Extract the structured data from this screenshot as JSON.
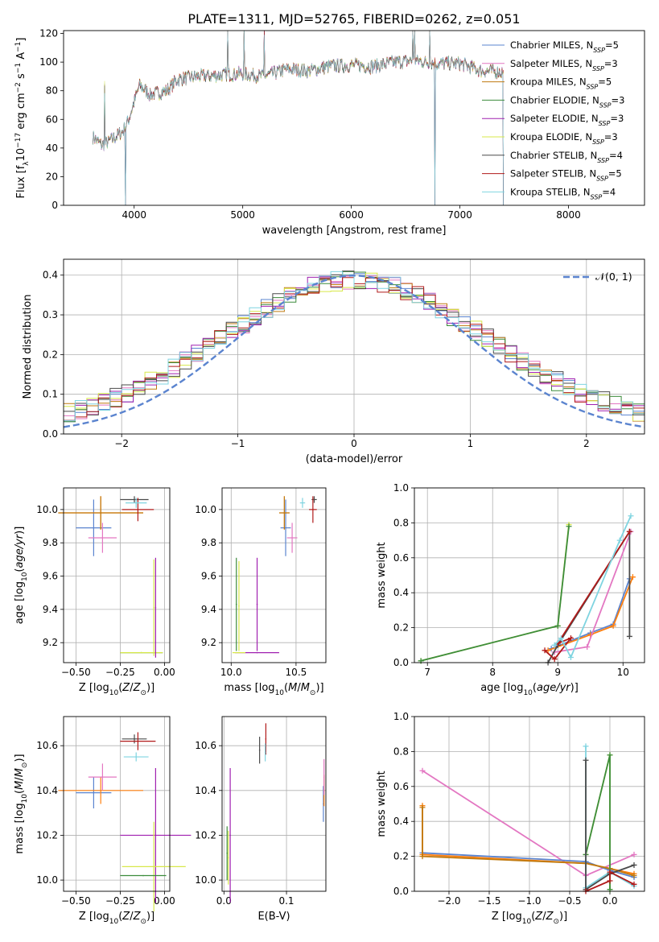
{
  "figure_title": "PLATE=1311, MJD=52765, FIBERID=0262, z=0.051",
  "series_colors": {
    "Chabrier MILES": "#5b84cf",
    "Salpeter MILES": "#ff7f0e",
    "Kroupa MILES": "#c07a10",
    "Chabrier ELODIE": "#3c8c3c",
    "Salpeter ELODIE": "#a020b0",
    "Kroupa ELODIE": "#d7e84a",
    "Chabrier STELIB": "#4a4a4a",
    "Salpeter STELIB": "#b11a1a",
    "Kroupa STELIB": "#7fd4e0",
    "Salpeter MILES (param panels)": "#e377c2"
  },
  "chart_data": [
    {
      "id": "spectrum",
      "type": "line",
      "xlabel": "wavelength [Angstrom, rest frame]",
      "ylabel": "Flux [f",
      "xlim": [
        3350,
        8700
      ],
      "ylim": [
        0,
        122
      ],
      "xticks": [
        4000,
        5000,
        6000,
        7000,
        8000
      ],
      "yticks": [
        0,
        20,
        40,
        60,
        80,
        100,
        120
      ],
      "grid": false,
      "legend": "top-right",
      "legend_entries": [
        {
          "label": "Chabrier MILES, N",
          "sub": "SSP",
          "suffix": "=5",
          "color": "#5b84cf"
        },
        {
          "label": "Salpeter MILES, N",
          "sub": "SSP",
          "suffix": "=3",
          "color": "#e377c2"
        },
        {
          "label": "Kroupa MILES, N",
          "sub": "SSP",
          "suffix": "=5",
          "color": "#c07a10"
        },
        {
          "label": "Chabrier ELODIE, N",
          "sub": "SSP",
          "suffix": "=3",
          "color": "#3c8c3c"
        },
        {
          "label": "Salpeter ELODIE, N",
          "sub": "SSP",
          "suffix": "=3",
          "color": "#a020b0"
        },
        {
          "label": "Kroupa ELODIE, N",
          "sub": "SSP",
          "suffix": "=3",
          "color": "#d7e84a"
        },
        {
          "label": "Chabrier STELIB, N",
          "sub": "SSP",
          "suffix": "=4",
          "color": "#4a4a4a"
        },
        {
          "label": "Salpeter STELIB, N",
          "sub": "SSP",
          "suffix": "=5",
          "color": "#b11a1a"
        },
        {
          "label": "Kroupa STELIB, N",
          "sub": "SSP",
          "suffix": "=4",
          "color": "#7fd4e0"
        }
      ],
      "flux_anchor_points": [
        [
          3620,
          48
        ],
        [
          3700,
          42
        ],
        [
          3800,
          46
        ],
        [
          3900,
          52
        ],
        [
          3950,
          60
        ],
        [
          4050,
          84
        ],
        [
          4150,
          77
        ],
        [
          4300,
          80
        ],
        [
          4400,
          88
        ],
        [
          4600,
          90
        ],
        [
          4800,
          91
        ],
        [
          5000,
          92
        ],
        [
          5200,
          90
        ],
        [
          5400,
          95
        ],
        [
          5600,
          94
        ],
        [
          5800,
          97
        ],
        [
          6000,
          98
        ],
        [
          6200,
          97
        ],
        [
          6400,
          100
        ],
        [
          6600,
          101
        ],
        [
          6800,
          99
        ],
        [
          7000,
          99
        ],
        [
          7200,
          94
        ],
        [
          7400,
          93
        ]
      ],
      "dropouts_x": [
        3920,
        6770,
        7400
      ],
      "emission_spikes_x": [
        3730,
        4860,
        5010,
        5200,
        6565,
        6585,
        6720
      ]
    },
    {
      "id": "residual-histogram",
      "type": "line",
      "xlabel": "(data-model)/error",
      "ylabel": "Normed distribution",
      "xlim": [
        -2.5,
        2.5
      ],
      "ylim": [
        0,
        0.44
      ],
      "xticks": [
        -2,
        -1,
        0,
        1,
        2
      ],
      "yticks": [
        0.0,
        0.1,
        0.2,
        0.3,
        0.4
      ],
      "grid": true,
      "legend": "top-right",
      "reference_label": "𝒩(0, 1)",
      "reference_color": "#5b84cf",
      "bin_width": 0.1,
      "bin_start": -2.5
    },
    {
      "id": "age-vs-Z",
      "type": "scatter",
      "xlabel": "Z [log",
      "ylabel": "age  [log",
      "xlim": [
        -0.57,
        0.03
      ],
      "ylim": [
        9.08,
        10.13
      ],
      "xticks": [
        -0.5,
        -0.25,
        0.0
      ],
      "yticks": [
        9.2,
        9.4,
        9.6,
        9.8,
        10.0
      ],
      "grid": true,
      "points": [
        {
          "color": "#5b84cf",
          "x": -0.4,
          "y": 9.89,
          "xerr": 0.1,
          "yerr": 0.17
        },
        {
          "color": "#ff7f0e",
          "x": -0.36,
          "y": 9.98,
          "xerr": 0.24,
          "yerr": 0.1
        },
        {
          "color": "#c07a10",
          "x": -0.36,
          "y": 9.98,
          "xerr": 0.24,
          "yerr": 0.1
        },
        {
          "color": "#e377c2",
          "x": -0.35,
          "y": 9.83,
          "xerr": 0.08,
          "yerr": 0.09
        },
        {
          "color": "#3c8c3c",
          "x": -0.13,
          "y": 9.14,
          "xerr": 0.12,
          "yerr": 0.0
        },
        {
          "color": "#d7e84a",
          "x": -0.13,
          "y": 9.14,
          "xerr": 0.12,
          "yerr": 0.0
        },
        {
          "color": "#a020b0",
          "x": -0.05,
          "y": 9.41,
          "xerr": 0.0,
          "yerr": 0.3
        },
        {
          "color": "#d7e84a",
          "x": -0.06,
          "y": 9.41,
          "xerr": 0.0,
          "yerr": 0.29
        },
        {
          "color": "#4a4a4a",
          "x": -0.17,
          "y": 10.06,
          "xerr": 0.08,
          "yerr": 0.02
        },
        {
          "color": "#b11a1a",
          "x": -0.15,
          "y": 10.0,
          "xerr": 0.09,
          "yerr": 0.07
        },
        {
          "color": "#7fd4e0",
          "x": -0.16,
          "y": 10.04,
          "xerr": 0.06,
          "yerr": 0.03
        }
      ]
    },
    {
      "id": "age-vs-mass",
      "type": "scatter",
      "xlabel": "mass [log",
      "ylabel": "",
      "xlim": [
        9.93,
        10.73
      ],
      "ylim": [
        9.08,
        10.13
      ],
      "xticks": [
        10.0,
        10.5
      ],
      "yticks": [
        9.2,
        9.4,
        9.6,
        9.8,
        10.0
      ],
      "grid": true,
      "points": [
        {
          "color": "#5b84cf",
          "x": 10.42,
          "y": 9.89,
          "xerr": 0.04,
          "yerr": 0.17
        },
        {
          "color": "#ff7f0e",
          "x": 10.41,
          "y": 9.98,
          "xerr": 0.04,
          "yerr": 0.1
        },
        {
          "color": "#c07a10",
          "x": 10.41,
          "y": 9.98,
          "xerr": 0.04,
          "yerr": 0.1
        },
        {
          "color": "#e377c2",
          "x": 10.47,
          "y": 9.83,
          "xerr": 0.04,
          "yerr": 0.09
        },
        {
          "color": "#3c8c3c",
          "x": 10.04,
          "y": 9.43,
          "xerr": 0.0,
          "yerr": 0.28
        },
        {
          "color": "#d7e84a",
          "x": 10.06,
          "y": 9.42,
          "xerr": 0.0,
          "yerr": 0.27
        },
        {
          "color": "#a020b0",
          "x": 10.2,
          "y": 9.43,
          "xerr": 0.0,
          "yerr": 0.28
        },
        {
          "color": "#a020b0",
          "x": 10.2,
          "y": 9.14,
          "xerr": 0.17,
          "yerr": 0.0
        },
        {
          "color": "#d7e84a",
          "x": 10.06,
          "y": 9.14,
          "xerr": 0.05,
          "yerr": 0.0
        },
        {
          "color": "#4a4a4a",
          "x": 10.64,
          "y": 10.06,
          "xerr": 0.02,
          "yerr": 0.02
        },
        {
          "color": "#b11a1a",
          "x": 10.63,
          "y": 10.0,
          "xerr": 0.03,
          "yerr": 0.08
        },
        {
          "color": "#7fd4e0",
          "x": 10.55,
          "y": 10.04,
          "xerr": 0.02,
          "yerr": 0.03
        }
      ]
    },
    {
      "id": "weight-vs-age",
      "type": "line",
      "xlabel": "age  [log",
      "ylabel": "mass weight",
      "xlim": [
        6.8,
        10.33
      ],
      "ylim": [
        0,
        1.0
      ],
      "xticks": [
        7,
        8,
        9,
        10
      ],
      "yticks": [
        0.0,
        0.2,
        0.4,
        0.6,
        0.8,
        1.0
      ],
      "grid": true,
      "series": [
        {
          "color": "#d7e84a",
          "x": [
            6.9,
            9.0,
            9.17
          ],
          "y": [
            0.01,
            0.21,
            0.79
          ]
        },
        {
          "color": "#3c8c3c",
          "x": [
            6.9,
            9.0,
            9.17
          ],
          "y": [
            0.01,
            0.21,
            0.78
          ]
        },
        {
          "color": "#5b84cf",
          "x": [
            8.9,
            9.5,
            9.85,
            10.1
          ],
          "y": [
            0.08,
            0.17,
            0.22,
            0.48
          ]
        },
        {
          "color": "#ff7f0e",
          "x": [
            8.85,
            9.5,
            9.85,
            10.15
          ],
          "y": [
            0.07,
            0.16,
            0.21,
            0.49
          ]
        },
        {
          "color": "#e377c2",
          "x": [
            8.95,
            9.45,
            10.12
          ],
          "y": [
            0.06,
            0.09,
            0.75
          ]
        },
        {
          "color": "#4a4a4a",
          "x": [
            8.85,
            9.0,
            10.1,
            10.1
          ],
          "y": [
            0.0,
            0.1,
            0.75,
            0.15
          ]
        },
        {
          "color": "#b11a1a",
          "x": [
            8.8,
            8.95,
            9.2,
            9.0,
            10.1
          ],
          "y": [
            0.07,
            0.02,
            0.14,
            0.11,
            0.75
          ]
        },
        {
          "color": "#7fd4e0",
          "x": [
            8.95,
            9.05,
            9.2,
            9.95,
            10.12
          ],
          "y": [
            0.1,
            0.14,
            0.03,
            0.7,
            0.84
          ]
        }
      ]
    },
    {
      "id": "mass-vs-Z",
      "type": "scatter",
      "xlabel": "Z [log",
      "ylabel": "mass [log",
      "xlim": [
        -0.57,
        0.03
      ],
      "ylim": [
        9.95,
        10.73
      ],
      "xticks": [
        -0.5,
        -0.25,
        0.0
      ],
      "yticks": [
        10.0,
        10.2,
        10.4,
        10.6
      ],
      "grid": true,
      "points": [
        {
          "color": "#5b84cf",
          "x": -0.4,
          "y": 10.39,
          "xerr": 0.1,
          "yerr": 0.07
        },
        {
          "color": "#ff7f0e",
          "x": -0.36,
          "y": 10.4,
          "xerr": 0.24,
          "yerr": 0.06
        },
        {
          "color": "#e377c2",
          "x": -0.35,
          "y": 10.46,
          "xerr": 0.08,
          "yerr": 0.06
        },
        {
          "color": "#a020b0",
          "x": -0.05,
          "y": 10.2,
          "xerr": 0.2,
          "yerr": 0.3
        },
        {
          "color": "#d7e84a",
          "x": -0.06,
          "y": 10.06,
          "xerr": 0.18,
          "yerr": 0.2
        },
        {
          "color": "#3c8c3c",
          "x": -0.12,
          "y": 10.02,
          "xerr": 0.13,
          "yerr": 0.0
        },
        {
          "color": "#4a4a4a",
          "x": -0.17,
          "y": 10.63,
          "xerr": 0.07,
          "yerr": 0.02
        },
        {
          "color": "#b11a1a",
          "x": -0.15,
          "y": 10.62,
          "xerr": 0.1,
          "yerr": 0.04
        },
        {
          "color": "#7fd4e0",
          "x": -0.16,
          "y": 10.55,
          "xerr": 0.07,
          "yerr": 0.02
        }
      ]
    },
    {
      "id": "mass-vs-EBV",
      "type": "scatter",
      "xlabel": "E(B-V)",
      "ylabel": "",
      "xlim": [
        -0.003,
        0.163
      ],
      "ylim": [
        9.95,
        10.73
      ],
      "xticks": [
        0.0,
        0.1
      ],
      "yticks": [
        10.0,
        10.2,
        10.4,
        10.6
      ],
      "grid": true,
      "points": [
        {
          "color": "#3c8c3c",
          "x": 0.005,
          "y": 10.12,
          "xerr": 0.0,
          "yerr": 0.12
        },
        {
          "color": "#d7e84a",
          "x": 0.007,
          "y": 10.1,
          "xerr": 0.0,
          "yerr": 0.12
        },
        {
          "color": "#a020b0",
          "x": 0.01,
          "y": 10.2,
          "xerr": 0.0,
          "yerr": 0.3
        },
        {
          "color": "#4a4a4a",
          "x": 0.057,
          "y": 10.58,
          "xerr": 0.0,
          "yerr": 0.06
        },
        {
          "color": "#b11a1a",
          "x": 0.067,
          "y": 10.63,
          "xerr": 0.0,
          "yerr": 0.07
        },
        {
          "color": "#7fd4e0",
          "x": 0.066,
          "y": 10.57,
          "xerr": 0.0,
          "yerr": 0.04
        },
        {
          "color": "#5b84cf",
          "x": 0.159,
          "y": 10.34,
          "xerr": 0.0,
          "yerr": 0.08
        },
        {
          "color": "#ff7f0e",
          "x": 0.16,
          "y": 10.4,
          "xerr": 0.0,
          "yerr": 0.07
        },
        {
          "color": "#e377c2",
          "x": 0.16,
          "y": 10.46,
          "xerr": 0.0,
          "yerr": 0.08
        }
      ]
    },
    {
      "id": "weight-vs-Z",
      "type": "line",
      "xlabel": "Z [log",
      "ylabel": "mass weight",
      "xlim": [
        -2.43,
        0.43
      ],
      "ylim": [
        0,
        1.0
      ],
      "xticks": [
        -2.0,
        -1.5,
        -1.0,
        -0.5,
        0.0
      ],
      "yticks": [
        0.0,
        0.2,
        0.4,
        0.6,
        0.8,
        1.0
      ],
      "grid": true,
      "series": [
        {
          "color": "#e377c2",
          "x": [
            -2.33,
            -0.3,
            0.3
          ],
          "y": [
            0.69,
            0.09,
            0.21
          ]
        },
        {
          "color": "#5b84cf",
          "x": [
            -2.33,
            -0.3,
            0.0,
            0.3
          ],
          "y": [
            0.22,
            0.17,
            0.12,
            0.08
          ]
        },
        {
          "color": "#ff7f0e",
          "x": [
            -2.33,
            -2.33,
            -0.3,
            0.0,
            0.3
          ],
          "y": [
            0.49,
            0.21,
            0.16,
            0.13,
            0.1
          ]
        },
        {
          "color": "#c07a10",
          "x": [
            -2.33,
            -2.33,
            -0.3,
            0.0,
            0.3
          ],
          "y": [
            0.48,
            0.2,
            0.16,
            0.13,
            0.09
          ]
        },
        {
          "color": "#d7e84a",
          "x": [
            -0.3,
            0.0,
            0.0
          ],
          "y": [
            0.21,
            0.78,
            0.01
          ]
        },
        {
          "color": "#3c8c3c",
          "x": [
            -0.3,
            0.0,
            0.0
          ],
          "y": [
            0.21,
            0.78,
            0.01
          ]
        },
        {
          "color": "#7fd4e0",
          "x": [
            -0.3,
            -0.3,
            0.0,
            0.3
          ],
          "y": [
            0.83,
            0.02,
            0.11,
            0.03
          ]
        },
        {
          "color": "#4a4a4a",
          "x": [
            -0.3,
            -0.3,
            0.0,
            0.3
          ],
          "y": [
            0.75,
            0.01,
            0.1,
            0.15
          ]
        },
        {
          "color": "#b11a1a",
          "x": [
            -0.3,
            0.0,
            0.0,
            0.3
          ],
          "y": [
            0.0,
            0.06,
            0.11,
            0.04
          ]
        }
      ]
    }
  ]
}
